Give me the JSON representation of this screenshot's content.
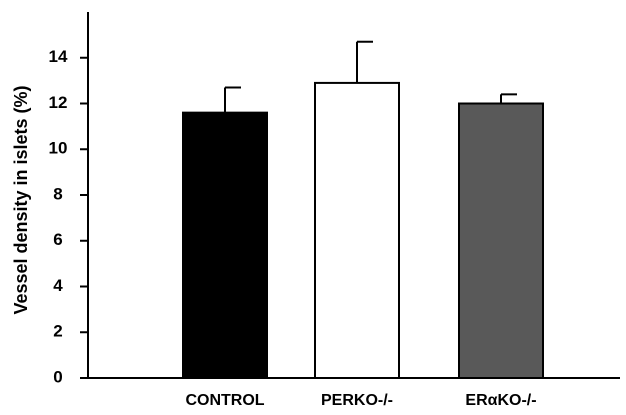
{
  "chart_data": {
    "type": "bar",
    "title": "",
    "xlabel": "",
    "ylabel": "Vessel density in islets (%)",
    "ylim": [
      0,
      16
    ],
    "yticks": [
      0,
      2,
      4,
      6,
      8,
      10,
      12,
      14
    ],
    "grid": false,
    "categories": [
      "CONTROL",
      "PERKO-/-",
      "ERαKO-/-"
    ],
    "values": [
      11.6,
      12.9,
      12.0
    ],
    "errors": [
      1.1,
      1.8,
      0.4
    ],
    "colors": [
      "#000000",
      "#ffffff",
      "#595959"
    ]
  }
}
